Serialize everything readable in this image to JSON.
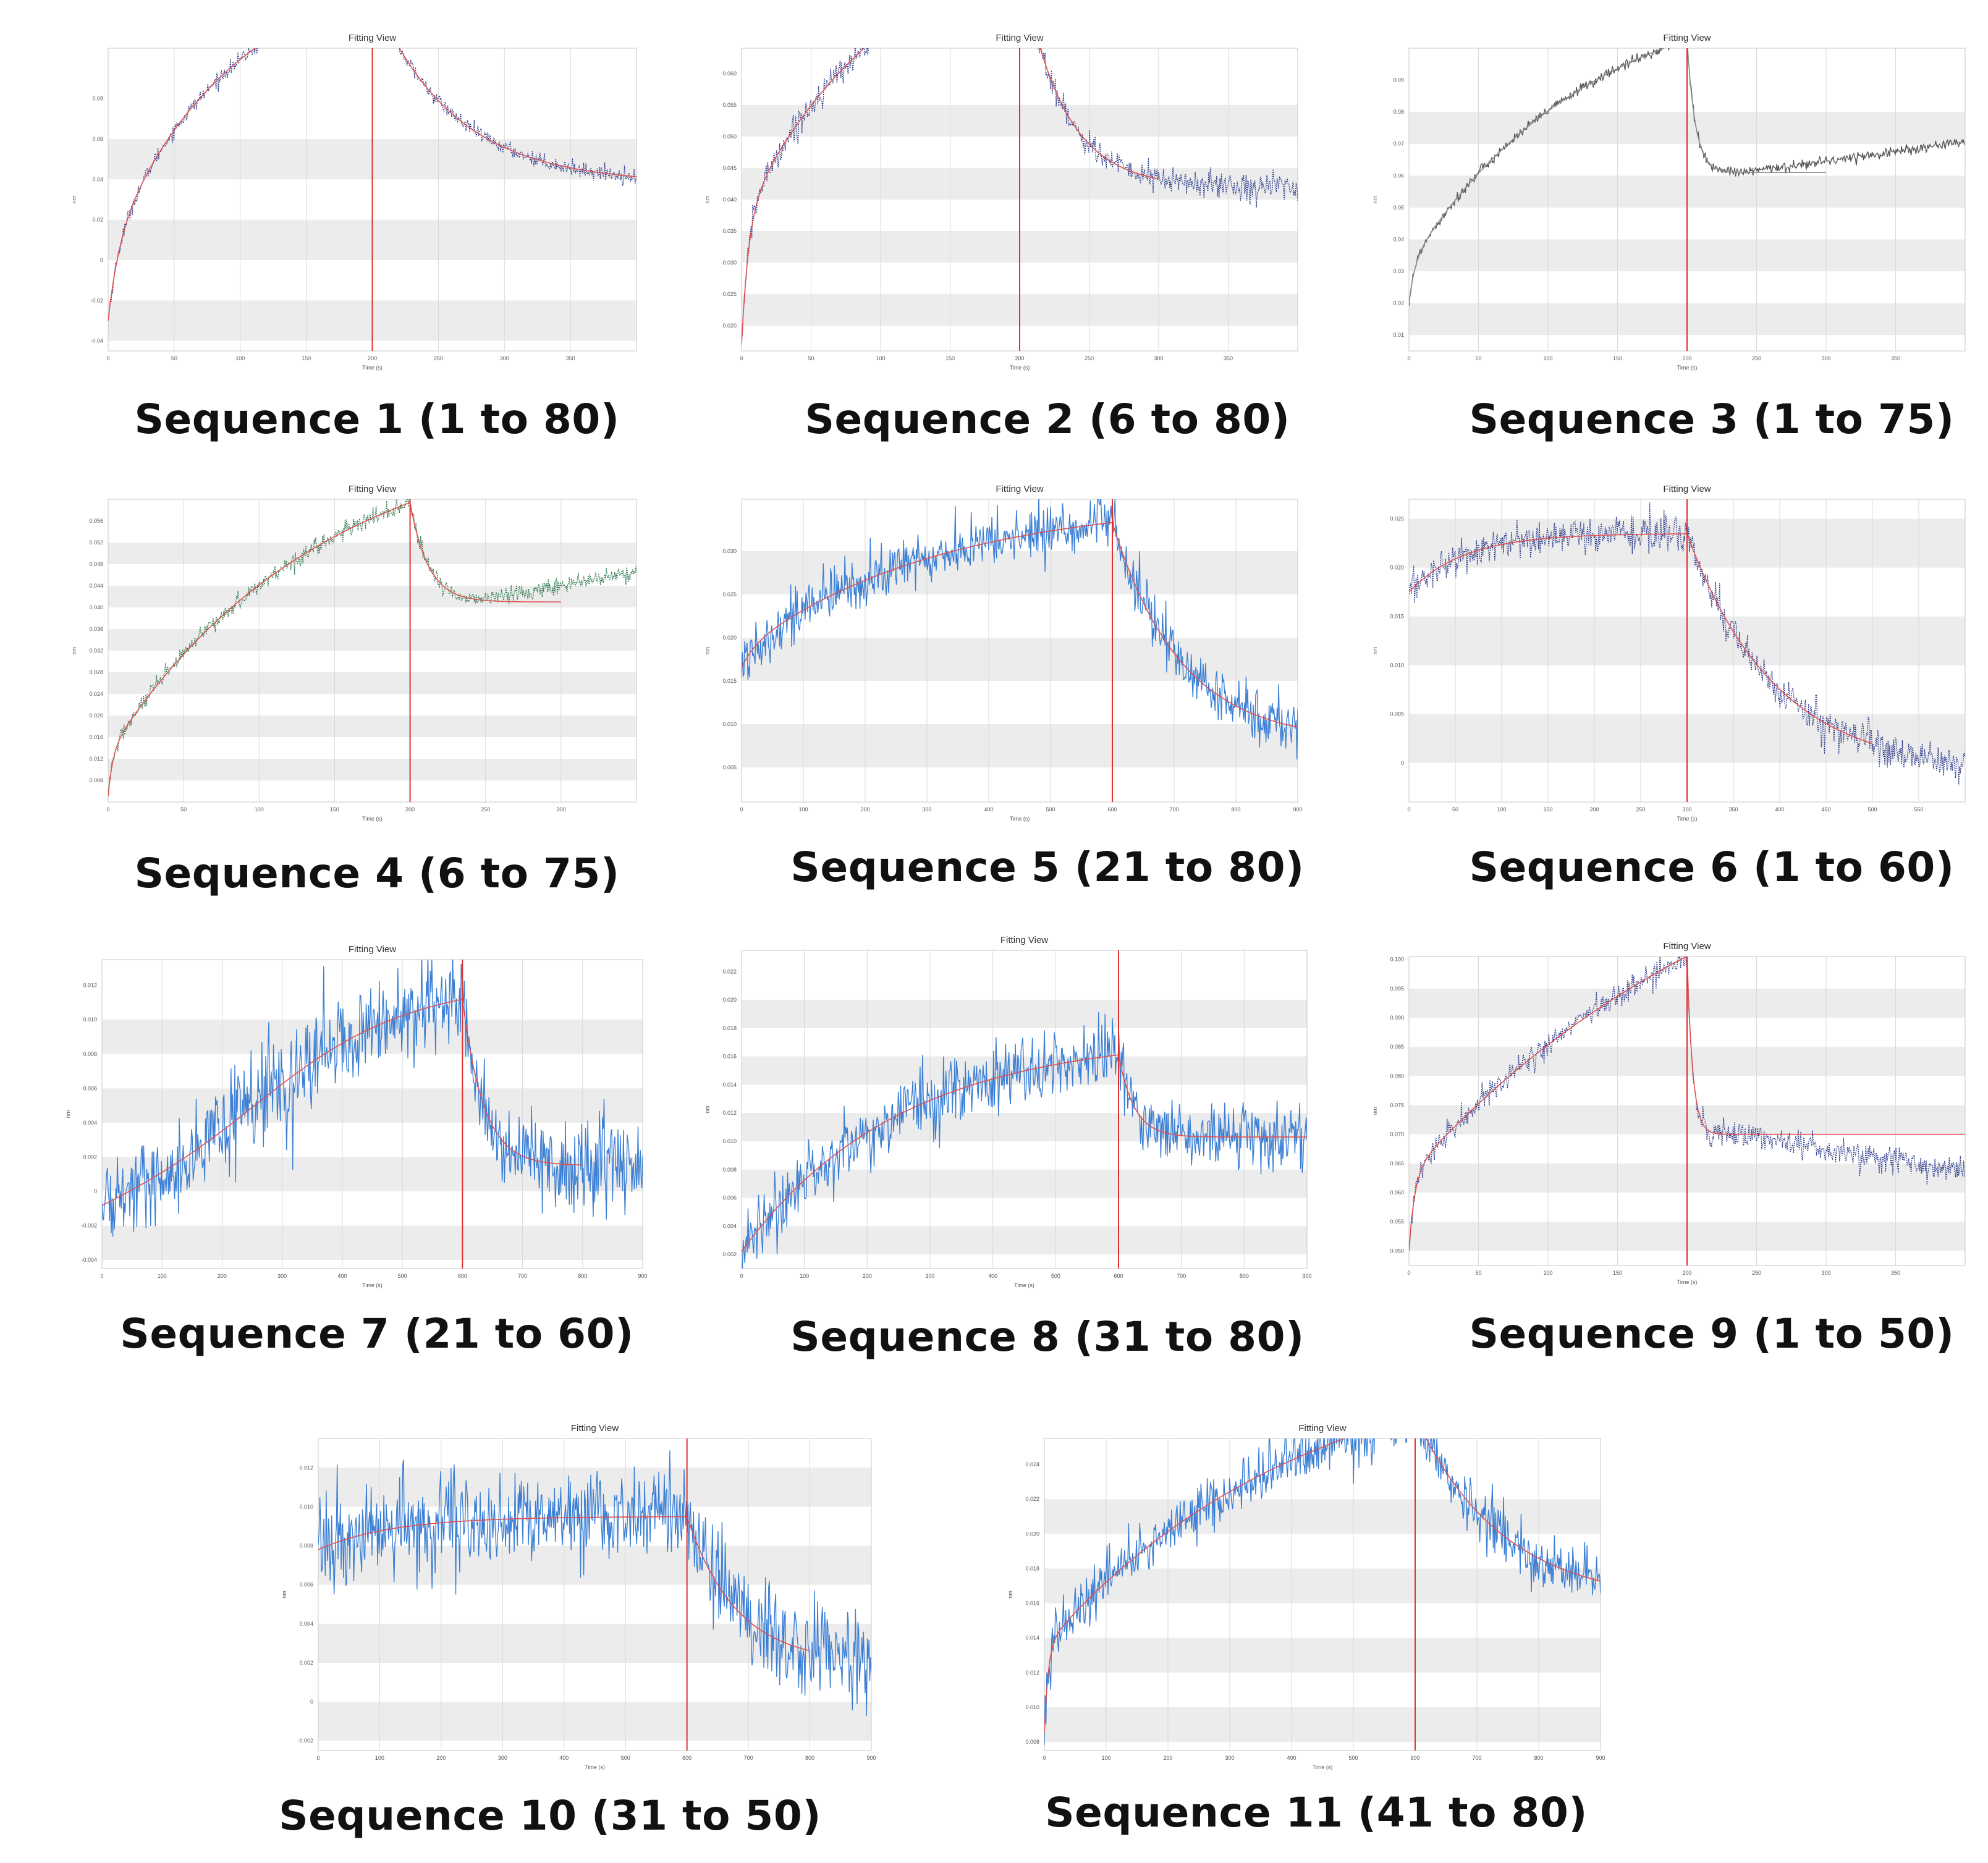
{
  "figure": {
    "background": "#ffffff",
    "band_color": "#ececec",
    "grid_color": "#d9d9d9",
    "fit_color": "#e05050",
    "switch_line_color": "#e03030",
    "gray_fit_color": "#8c8c8c"
  },
  "chart_data": [
    {
      "type": "line",
      "title": "Fitting View",
      "caption": "Sequence 1 (1 to 80)",
      "xlabel": "Time (s)",
      "ylabel": "nm",
      "xlim": [
        0,
        400
      ],
      "ylim": [
        -0.045,
        0.105
      ],
      "x_ticks": [
        0,
        50,
        100,
        150,
        200,
        250,
        300,
        350
      ],
      "y_ticks": [
        -0.04,
        -0.02,
        0,
        0.02,
        0.04,
        0.06,
        0.08
      ],
      "y_tick_labels": [
        "-0.04",
        "-0.02",
        "0",
        "0.02",
        "0.04",
        "0.06",
        "0.08"
      ],
      "switch_time": 200,
      "assoc": {
        "y0": -0.03,
        "plateau": 0.115,
        "tau": 95,
        "fast_amp": 0.035,
        "fast_tau": 8
      },
      "dissoc": {
        "offset": 0.038,
        "amp": 0.053,
        "tau": 60
      },
      "noise": 0.0018,
      "fit_end": 400,
      "data_color": "#2b3a8a",
      "data_style": "dots",
      "fit_color": "#e05050"
    },
    {
      "type": "line",
      "title": "Fitting View",
      "caption": "Sequence 2 (6 to 80)",
      "xlabel": "Time (s)",
      "ylabel": "nm",
      "xlim": [
        0,
        400
      ],
      "ylim": [
        0.016,
        0.064
      ],
      "x_ticks": [
        0,
        50,
        100,
        150,
        200,
        250,
        300,
        350
      ],
      "y_ticks": [
        0.02,
        0.025,
        0.03,
        0.035,
        0.04,
        0.045,
        0.05,
        0.055,
        0.06
      ],
      "y_tick_labels": [
        "0.020",
        "0.025",
        "0.030",
        "0.035",
        "0.040",
        "0.045",
        "0.050",
        "0.055",
        "0.060"
      ],
      "switch_time": 200,
      "assoc": {
        "y0": 0.017,
        "plateau": 0.066,
        "tau": 110,
        "fast_amp": 0.02,
        "fast_tau": 5
      },
      "dissoc": {
        "offset": 0.042,
        "amp": 0.016,
        "tau": 30
      },
      "noise": 0.0011,
      "fit_end": 300,
      "data_color": "#2b3a8a",
      "data_style": "dots",
      "fit_color": "#e05050"
    },
    {
      "type": "line",
      "title": "Fitting View",
      "caption": "Sequence 3 (1 to 75)",
      "xlabel": "Time (s)",
      "ylabel": "nm",
      "xlim": [
        0,
        400
      ],
      "ylim": [
        0.005,
        0.1
      ],
      "x_ticks": [
        0,
        50,
        100,
        150,
        200,
        250,
        300,
        350
      ],
      "y_ticks": [
        0.01,
        0.02,
        0.03,
        0.04,
        0.05,
        0.06,
        0.07,
        0.08,
        0.09
      ],
      "y_tick_labels": [
        "0.01",
        "0.02",
        "0.03",
        "0.04",
        "0.05",
        "0.06",
        "0.07",
        "0.08",
        "0.09"
      ],
      "switch_time": 200,
      "assoc": {
        "y0": 0.02,
        "plateau": 0.11,
        "tau": 130,
        "fast_amp": 0.012,
        "fast_tau": 4
      },
      "dissoc": {
        "offset": 0.061,
        "amp": 0.025,
        "tau": 6
      },
      "noise": 0.0008,
      "fit_end": 300,
      "drift_after": 6e-05,
      "data_color": "#555555",
      "data_style": "line",
      "fit_color": "#8c8c8c"
    },
    {
      "type": "line",
      "title": "Fitting View",
      "caption": "Sequence 4 (6 to 75)",
      "xlabel": "Time (s)",
      "ylabel": "nm",
      "xlim": [
        0,
        350
      ],
      "ylim": [
        0.004,
        0.06
      ],
      "x_ticks": [
        0,
        50,
        100,
        150,
        200,
        250,
        300
      ],
      "y_ticks": [
        0.008,
        0.012,
        0.016,
        0.02,
        0.024,
        0.028,
        0.032,
        0.036,
        0.04,
        0.044,
        0.048,
        0.052,
        0.056
      ],
      "y_tick_labels": [
        "0.008",
        "0.012",
        "0.016",
        "0.020",
        "0.024",
        "0.028",
        "0.032",
        "0.036",
        "0.040",
        "0.044",
        "0.048",
        "0.052",
        "0.056"
      ],
      "switch_time": 200,
      "assoc": {
        "y0": 0.005,
        "plateau": 0.066,
        "tau": 140,
        "fast_amp": 0.008,
        "fast_tau": 3
      },
      "dissoc": {
        "offset": 0.041,
        "amp": 0.012,
        "tau": 12
      },
      "noise": 0.0008,
      "fit_end": 300,
      "drift_after": 5e-05,
      "data_color": "#2e7a4f",
      "data_style": "dots",
      "fit_color": "#e05050"
    },
    {
      "type": "line",
      "title": "Fitting View",
      "caption": "Sequence 5 (21 to 80)",
      "xlabel": "Time (s)",
      "ylabel": "nm",
      "xlim": [
        0,
        900
      ],
      "ylim": [
        0.001,
        0.036
      ],
      "x_ticks": [
        0,
        100,
        200,
        300,
        400,
        500,
        600,
        700,
        800,
        900
      ],
      "y_ticks": [
        0.005,
        0.01,
        0.015,
        0.02,
        0.025,
        0.03
      ],
      "y_tick_labels": [
        "0.005",
        "0.010",
        "0.015",
        "0.020",
        "0.025",
        "0.030"
      ],
      "switch_time": 600,
      "assoc": {
        "y0": 0.0165,
        "plateau": 0.034,
        "tau": 320,
        "fast_amp": 0.002,
        "fast_tau": 20
      },
      "dissoc": {
        "offset": 0.008,
        "amp": 0.022,
        "tau": 110
      },
      "noise": 0.0016,
      "fit_end": 900,
      "data_color": "#3a7fd5",
      "data_style": "line",
      "fit_color": "#e05050"
    },
    {
      "type": "line",
      "title": "Fitting View",
      "caption": "Sequence 6 (1 to 60)",
      "xlabel": "Time (s)",
      "ylabel": "nm",
      "xlim": [
        0,
        600
      ],
      "ylim": [
        -0.004,
        0.027
      ],
      "x_ticks": [
        0,
        50,
        100,
        150,
        200,
        250,
        300,
        350,
        400,
        450,
        500,
        550
      ],
      "y_ticks": [
        0,
        0.005,
        0.01,
        0.015,
        0.02,
        0.025
      ],
      "y_tick_labels": [
        "0",
        "0.005",
        "0.010",
        "0.015",
        "0.020",
        "0.025"
      ],
      "switch_time": 300,
      "assoc": {
        "y0": 0.0175,
        "plateau": 0.0235,
        "tau": 60,
        "fast_amp": 0,
        "fast_tau": 5
      },
      "dissoc": {
        "offset": -0.001,
        "amp": 0.0235,
        "tau": 95
      },
      "noise": 0.0009,
      "fit_end": 500,
      "data_color": "#2b3a8a",
      "data_style": "dots",
      "fit_color": "#e05050"
    },
    {
      "type": "line",
      "title": "Fitting View",
      "caption": "Sequence 7 (21 to 60)",
      "xlabel": "Time (s)",
      "ylabel": "nm",
      "xlim": [
        0,
        900
      ],
      "ylim": [
        -0.0045,
        0.0135
      ],
      "x_ticks": [
        0,
        100,
        200,
        300,
        400,
        500,
        600,
        700,
        800,
        900
      ],
      "y_ticks": [
        -0.004,
        -0.002,
        0,
        0.002,
        0.004,
        0.006,
        0.008,
        0.01,
        0.012
      ],
      "y_tick_labels": [
        "-0.004",
        "-0.002",
        "0",
        "0.002",
        "0.004",
        "0.006",
        "0.008",
        "0.010",
        "0.012"
      ],
      "switch_time": 600,
      "assoc": {
        "y0": -0.0015,
        "plateau": 0.0165,
        "tau": 520,
        "fast_amp": 0,
        "fast_tau": 5
      },
      "dissoc": {
        "offset": 0.0015,
        "amp": 0.0085,
        "tau": 35
      },
      "noise": 0.0013,
      "fit_end": 800,
      "sigmoid": true,
      "data_color": "#3a7fd5",
      "data_style": "line",
      "fit_color": "#e05050"
    },
    {
      "type": "line",
      "title": "Fitting View",
      "caption": "Sequence 8 (31 to 80)",
      "xlabel": "Time (s)",
      "ylabel": "nm",
      "xlim": [
        0,
        900
      ],
      "ylim": [
        0.001,
        0.0235
      ],
      "x_ticks": [
        0,
        100,
        200,
        300,
        400,
        500,
        600,
        700,
        800,
        900
      ],
      "y_ticks": [
        0.002,
        0.004,
        0.006,
        0.008,
        0.01,
        0.012,
        0.014,
        0.016,
        0.018,
        0.02,
        0.022
      ],
      "y_tick_labels": [
        "0.002",
        "0.004",
        "0.006",
        "0.008",
        "0.010",
        "0.012",
        "0.014",
        "0.016",
        "0.018",
        "0.020",
        "0.022"
      ],
      "switch_time": 600,
      "assoc": {
        "y0": 0.0022,
        "plateau": 0.0175,
        "tau": 250,
        "fast_amp": 0,
        "fast_tau": 5
      },
      "dissoc": {
        "offset": 0.0103,
        "amp": 0.0048,
        "tau": 25
      },
      "noise": 0.0012,
      "fit_end": 900,
      "data_color": "#3a7fd5",
      "data_style": "line",
      "fit_color": "#e05050"
    },
    {
      "type": "line",
      "title": "Fitting View",
      "caption": "Sequence 9 (1 to 50)",
      "xlabel": "Time (s)",
      "ylabel": "nm",
      "xlim": [
        0,
        400
      ],
      "ylim": [
        0.0475,
        0.1005
      ],
      "x_ticks": [
        0,
        50,
        100,
        150,
        200,
        250,
        300,
        350
      ],
      "y_ticks": [
        0.05,
        0.055,
        0.06,
        0.065,
        0.07,
        0.075,
        0.08,
        0.085,
        0.09,
        0.095,
        0.1
      ],
      "y_tick_labels": [
        "0.050",
        "0.055",
        "0.060",
        "0.065",
        "0.070",
        "0.075",
        "0.080",
        "0.085",
        "0.090",
        "0.095",
        "0.100"
      ],
      "switch_time": 200,
      "assoc": {
        "y0": 0.05,
        "plateau": 0.12,
        "tau": 260,
        "fast_amp": 0.013,
        "fast_tau": 4
      },
      "dissoc": {
        "offset": 0.07,
        "amp": 0.027,
        "tau": 4
      },
      "noise": 0.0011,
      "fit_end": 400,
      "drift_after": -4e-05,
      "data_color": "#2b3a8a",
      "data_style": "dots",
      "fit_color": "#e05050"
    },
    {
      "type": "line",
      "title": "Fitting View",
      "caption": "Sequence 10 (31 to 50)",
      "xlabel": "Time (s)",
      "ylabel": "nm",
      "xlim": [
        0,
        900
      ],
      "ylim": [
        -0.0025,
        0.0135
      ],
      "x_ticks": [
        0,
        100,
        200,
        300,
        400,
        500,
        600,
        700,
        800,
        900
      ],
      "y_ticks": [
        -0.002,
        0,
        0.002,
        0.004,
        0.006,
        0.008,
        0.01,
        0.012
      ],
      "y_tick_labels": [
        "-0.002",
        "0",
        "0.002",
        "0.004",
        "0.006",
        "0.008",
        "0.010",
        "0.012"
      ],
      "switch_time": 600,
      "assoc": {
        "y0": 0.0078,
        "plateau": 0.0095,
        "tau": 120,
        "fast_amp": 0,
        "fast_tau": 5
      },
      "dissoc": {
        "offset": 0.002,
        "amp": 0.0074,
        "tau": 80
      },
      "noise": 0.0012,
      "fit_end": 800,
      "data_color": "#3a7fd5",
      "data_style": "line",
      "fit_color": "#e05050"
    },
    {
      "type": "line",
      "title": "Fitting View",
      "caption": "Sequence 11 (41 to 80)",
      "xlabel": "Time (s)",
      "ylabel": "nm",
      "xlim": [
        0,
        900
      ],
      "ylim": [
        0.0075,
        0.0255
      ],
      "x_ticks": [
        0,
        100,
        200,
        300,
        400,
        500,
        600,
        700,
        800,
        900
      ],
      "y_ticks": [
        0.008,
        0.01,
        0.012,
        0.014,
        0.016,
        0.018,
        0.02,
        0.022,
        0.024
      ],
      "y_tick_labels": [
        "0.008",
        "0.010",
        "0.012",
        "0.014",
        "0.016",
        "0.018",
        "0.020",
        "0.022",
        "0.024"
      ],
      "switch_time": 600,
      "assoc": {
        "y0": 0.0085,
        "plateau": 0.026,
        "tau": 420,
        "fast_amp": 0.005,
        "fast_tau": 6
      },
      "dissoc": {
        "offset": 0.016,
        "amp": 0.0055,
        "tau": 140
      },
      "noise": 0.0008,
      "fit_end": 900,
      "data_color": "#3a7fd5",
      "data_style": "line",
      "fit_color": "#e05050"
    }
  ]
}
